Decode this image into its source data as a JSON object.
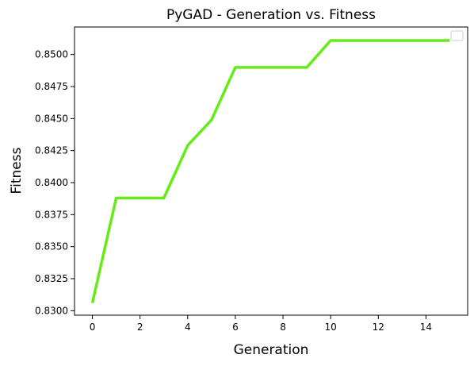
{
  "chart_data": {
    "type": "line",
    "title": "PyGAD - Generation vs. Fitness",
    "xlabel": "Generation",
    "ylabel": "Fitness",
    "xlim": [
      -0.75,
      15.75
    ],
    "ylim": [
      0.82965,
      0.85215
    ],
    "x_ticks": [
      0,
      2,
      4,
      6,
      8,
      10,
      12,
      14
    ],
    "y_ticks": [
      0.83,
      0.8325,
      0.835,
      0.8375,
      0.84,
      0.8425,
      0.845,
      0.8475,
      0.85
    ],
    "x_tick_labels": [
      "0",
      "2",
      "4",
      "6",
      "8",
      "10",
      "12",
      "14"
    ],
    "y_tick_labels": [
      "0.8300",
      "0.8325",
      "0.8350",
      "0.8375",
      "0.8400",
      "0.8425",
      "0.8450",
      "0.8475",
      "0.8500"
    ],
    "grid": false,
    "legend": {
      "placement": "top-right",
      "entries": []
    },
    "series": [
      {
        "color": "#64EB18",
        "x": [
          0,
          1,
          2,
          3,
          4,
          5,
          6,
          7,
          8,
          9,
          10,
          11,
          12,
          13,
          14,
          15
        ],
        "y": [
          0.8306,
          0.8388,
          0.8388,
          0.8388,
          0.8429,
          0.8449,
          0.849,
          0.849,
          0.849,
          0.849,
          0.8511,
          0.8511,
          0.8511,
          0.8511,
          0.8511,
          0.8511
        ]
      }
    ]
  }
}
